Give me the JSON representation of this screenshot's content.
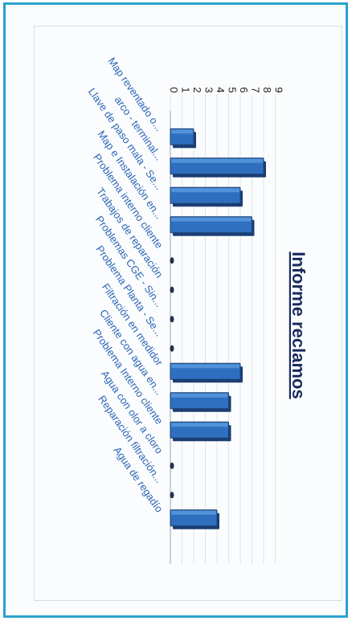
{
  "chart_data": {
    "type": "bar",
    "title": "Informe reclamos",
    "categories": [
      "Map reventado o...",
      "arco - terminal...",
      "Llave de paso mala - Se...",
      "Map e Instalación en...",
      "Problema interno cliente",
      "Trabajos de reparación",
      "Problemas CGE - Sin...",
      "Problema Planta - Se...",
      "Filtración en medidor",
      "Cliente con agua en...",
      "Problema Interno cliente",
      "Agua con olor a cloro",
      "Reparación filtración...",
      "Agua de regadío"
    ],
    "values": [
      2,
      8,
      6,
      7,
      0,
      0,
      0,
      0,
      6,
      5,
      5,
      0,
      0,
      4
    ],
    "ylim": [
      0,
      9
    ],
    "yticks": [
      "0",
      "1",
      "2",
      "3",
      "4",
      "5",
      "6",
      "7",
      "8",
      "9"
    ],
    "grid": true,
    "legend": "none",
    "colors": {
      "bar": "#2f6fbf",
      "bar_edge": "#1b3f73",
      "title": "#1a2a5e",
      "label": "#2a64b8",
      "frame": "#29a3cc"
    }
  }
}
